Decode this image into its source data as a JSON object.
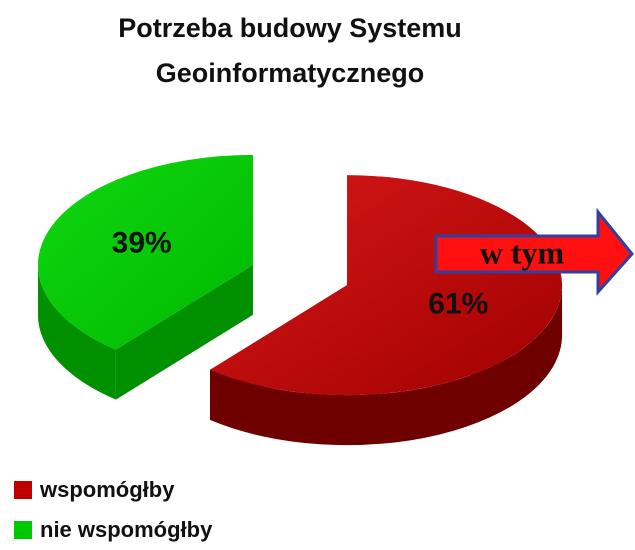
{
  "chart_data": {
    "type": "pie",
    "title": "Potrzeba budowy Systemu Geoinformatycznego",
    "categories": [
      "wspomógłby",
      "nie wspomógłby"
    ],
    "values": [
      61,
      39
    ],
    "value_labels": [
      "61%",
      "39%"
    ],
    "colors": [
      "#c00000",
      "#00c800"
    ],
    "annotation": "w tym"
  }
}
